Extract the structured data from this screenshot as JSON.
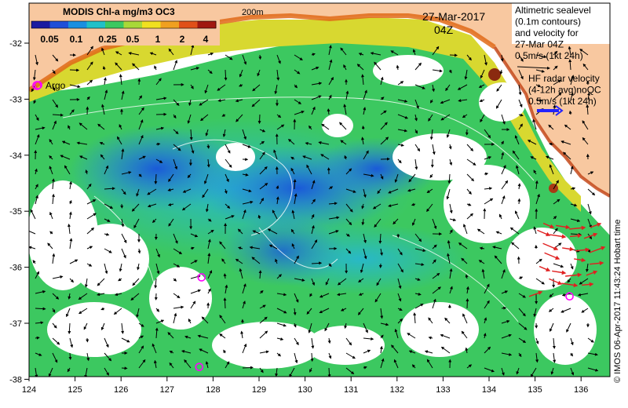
{
  "title": "MODIS Chl-a mg/m3 OC3",
  "colorbar": {
    "ticks": [
      "0.05",
      "0.1",
      "0.25",
      "0.5",
      "1",
      "2",
      "4"
    ],
    "colors": [
      "#1a1aa0",
      "#1f4fd8",
      "#1a8fe0",
      "#20c0c8",
      "#3cc860",
      "#a8d838",
      "#f0e020",
      "#f0a020",
      "#e05018",
      "#a01810"
    ]
  },
  "isobath_label": "200m",
  "date": "27-Mar-2017",
  "time": "04Z",
  "legend": {
    "altimetry_lines": [
      "Altimetric sealevel",
      "(0.1m contours)",
      "and velocity for",
      "27-Mar 04Z",
      "0.5m/s (1kt 24h)"
    ],
    "hf_radar_lines": [
      "HF radar velocity",
      "(4-12h avg)noQC",
      "0.5m/s (1kt 24h)"
    ],
    "argo_label": "Argo"
  },
  "credit": "© IMOS 06-Apr-2017 11:43:24 Hobart time",
  "axes": {
    "x_ticks": [
      "124",
      "125",
      "126",
      "127",
      "128",
      "129",
      "130",
      "131",
      "132",
      "133",
      "134",
      "135",
      "136"
    ],
    "y_ticks": [
      "-32",
      "-33",
      "-34",
      "-35",
      "-36",
      "-37",
      "-38"
    ]
  },
  "colors": {
    "land": "#f8c8a0",
    "hf_radar_vector": "#2222ff",
    "radar_arrows": "#e02020",
    "argo_marker": "#ff00ff"
  },
  "argo_floats": [
    {
      "lon": 124.2,
      "lat": -32.75
    },
    {
      "lon": 127.75,
      "lat": -36.18
    },
    {
      "lon": 135.75,
      "lat": -36.52
    },
    {
      "lon": 127.7,
      "lat": -37.78
    }
  ]
}
